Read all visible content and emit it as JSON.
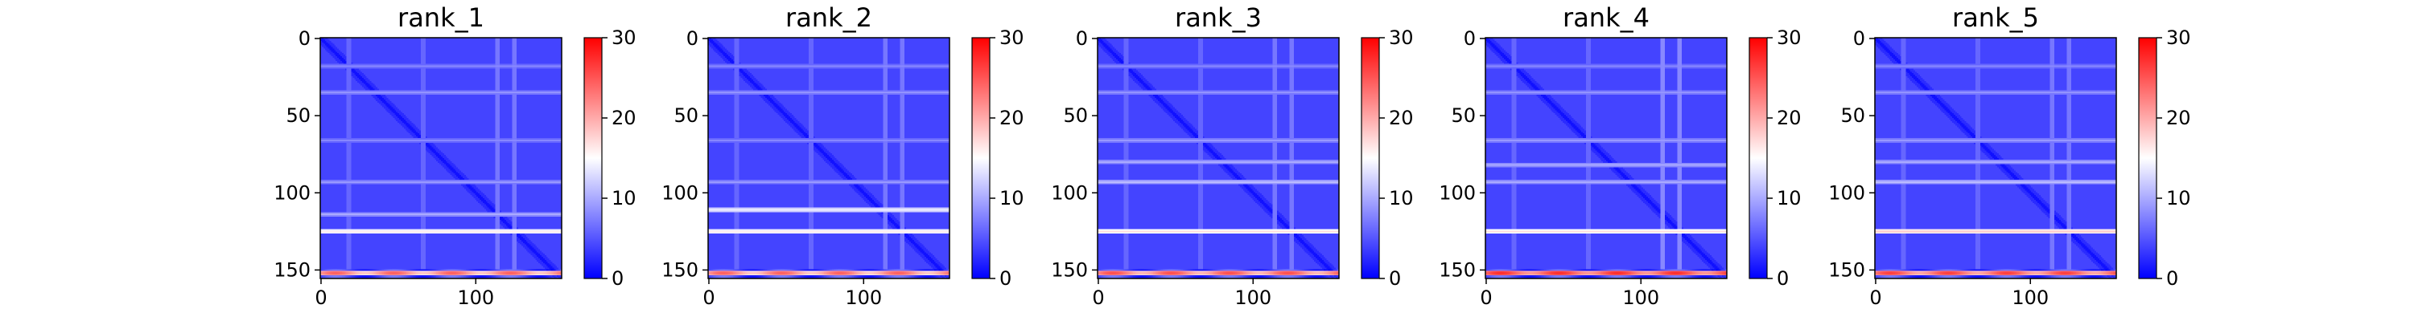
{
  "chart_data": {
    "type": "heatmap",
    "colormap": [
      "#0000ff",
      "#ffffff",
      "#ff0000"
    ],
    "matrix_size": 156,
    "x_ticks": [
      0,
      100
    ],
    "y_ticks": [
      0,
      50,
      100,
      150
    ],
    "colorbar": {
      "min": 0,
      "max": 30,
      "ticks": [
        0,
        10,
        20,
        30
      ]
    },
    "background_level": 4,
    "panels": [
      {
        "title": "rank_1",
        "band_rows": [
          {
            "row": 18,
            "level": 8
          },
          {
            "row": 35,
            "level": 9
          },
          {
            "row": 66,
            "level": 8
          },
          {
            "row": 93,
            "level": 9
          },
          {
            "row": 114,
            "level": 10
          },
          {
            "row": 125,
            "level": 16
          },
          {
            "row": 152,
            "level": 22
          }
        ],
        "band_cols": [
          {
            "col": 18,
            "level": 7
          },
          {
            "col": 66,
            "level": 7
          },
          {
            "col": 114,
            "level": 8
          },
          {
            "col": 125,
            "level": 8
          }
        ]
      },
      {
        "title": "rank_2",
        "band_rows": [
          {
            "row": 18,
            "level": 8
          },
          {
            "row": 35,
            "level": 9
          },
          {
            "row": 66,
            "level": 8
          },
          {
            "row": 93,
            "level": 9
          },
          {
            "row": 111,
            "level": 14
          },
          {
            "row": 125,
            "level": 16
          },
          {
            "row": 152,
            "level": 22
          }
        ],
        "band_cols": [
          {
            "col": 18,
            "level": 7
          },
          {
            "col": 66,
            "level": 7
          },
          {
            "col": 114,
            "level": 8
          },
          {
            "col": 125,
            "level": 8
          }
        ]
      },
      {
        "title": "rank_3",
        "band_rows": [
          {
            "row": 18,
            "level": 8
          },
          {
            "row": 35,
            "level": 9
          },
          {
            "row": 66,
            "level": 9
          },
          {
            "row": 80,
            "level": 10
          },
          {
            "row": 93,
            "level": 11
          },
          {
            "row": 125,
            "level": 17
          },
          {
            "row": 152,
            "level": 23
          }
        ],
        "band_cols": [
          {
            "col": 18,
            "level": 7
          },
          {
            "col": 66,
            "level": 7
          },
          {
            "col": 114,
            "level": 8
          },
          {
            "col": 125,
            "level": 8
          }
        ]
      },
      {
        "title": "rank_4",
        "band_rows": [
          {
            "row": 18,
            "level": 8
          },
          {
            "row": 35,
            "level": 9
          },
          {
            "row": 66,
            "level": 9
          },
          {
            "row": 82,
            "level": 10
          },
          {
            "row": 93,
            "level": 10
          },
          {
            "row": 125,
            "level": 17
          },
          {
            "row": 152,
            "level": 25
          }
        ],
        "band_cols": [
          {
            "col": 18,
            "level": 7
          },
          {
            "col": 66,
            "level": 7
          },
          {
            "col": 114,
            "level": 9
          },
          {
            "col": 125,
            "level": 9
          }
        ]
      },
      {
        "title": "rank_5",
        "band_rows": [
          {
            "row": 18,
            "level": 8
          },
          {
            "row": 35,
            "level": 9
          },
          {
            "row": 66,
            "level": 9
          },
          {
            "row": 80,
            "level": 10
          },
          {
            "row": 93,
            "level": 11
          },
          {
            "row": 125,
            "level": 18
          },
          {
            "row": 152,
            "level": 24
          }
        ],
        "band_cols": [
          {
            "col": 18,
            "level": 7
          },
          {
            "col": 66,
            "level": 7
          },
          {
            "col": 114,
            "level": 8
          },
          {
            "col": 125,
            "level": 8
          }
        ]
      }
    ]
  }
}
